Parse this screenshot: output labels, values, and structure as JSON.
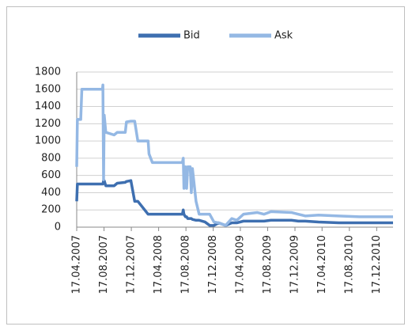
{
  "chart_data": {
    "type": "line",
    "x": [
      "17.04.2007",
      "20.04.2007",
      "05.05.2007",
      "10.05.2007",
      "10.08.2007",
      "12.08.2007",
      "15.08.2007",
      "18.08.2007",
      "25.08.2007",
      "01.10.2007",
      "15.10.2007",
      "20.11.2007",
      "25.11.2007",
      "15.12.2007",
      "01.01.2008",
      "15.01.2008",
      "01.03.2008",
      "05.03.2008",
      "20.03.2008",
      "01.08.2008",
      "05.08.2008",
      "08.08.2008",
      "15.08.2008",
      "20.08.2008",
      "25.08.2008",
      "05.09.2008",
      "10.09.2008",
      "15.09.2008",
      "01.10.2008",
      "15.10.2008",
      "10.11.2008",
      "01.12.2008",
      "20.12.2008",
      "10.01.2009",
      "10.02.2009",
      "10.03.2009",
      "01.04.2009",
      "01.05.2009",
      "01.07.2009",
      "01.08.2009",
      "01.09.2009",
      "01.12.2009",
      "01.01.2010",
      "01.02.2010",
      "01.04.2010",
      "01.07.2010",
      "01.10.2010",
      "28.02.2011"
    ],
    "series": [
      {
        "name": "Bid",
        "color": "#3e6fb0",
        "values": [
          300,
          500,
          500,
          500,
          500,
          500,
          540,
          540,
          480,
          480,
          510,
          520,
          530,
          540,
          300,
          300,
          150,
          150,
          150,
          150,
          200,
          150,
          120,
          120,
          100,
          100,
          100,
          90,
          80,
          80,
          60,
          20,
          20,
          50,
          20,
          50,
          50,
          70,
          70,
          70,
          80,
          80,
          70,
          70,
          60,
          50,
          50,
          50
        ]
      },
      {
        "name": "Ask",
        "color": "#94b8e4",
        "values": [
          700,
          1250,
          1250,
          1600,
          1600,
          1650,
          550,
          1300,
          1100,
          1070,
          1100,
          1100,
          1220,
          1230,
          1230,
          1000,
          1000,
          850,
          750,
          750,
          800,
          450,
          700,
          450,
          700,
          700,
          400,
          680,
          300,
          150,
          150,
          150,
          60,
          50,
          20,
          100,
          80,
          150,
          170,
          150,
          180,
          170,
          150,
          130,
          140,
          130,
          120,
          120
        ]
      }
    ],
    "xlim": [
      "17.04.2007",
      "28.02.2011"
    ],
    "xticks": [
      "17.04.2007",
      "17.08.2007",
      "17.12.2007",
      "17.04.2008",
      "17.08.2008",
      "17.12.2008",
      "17.04.2009",
      "17.08.2009",
      "17.12.2009",
      "17.04.2010",
      "17.08.2010",
      "17.12.2010"
    ],
    "ylim": [
      0,
      1800
    ],
    "yticks": [
      0,
      200,
      400,
      600,
      800,
      1000,
      1200,
      1400,
      1600,
      1800
    ],
    "grid": true,
    "legend": "top"
  }
}
